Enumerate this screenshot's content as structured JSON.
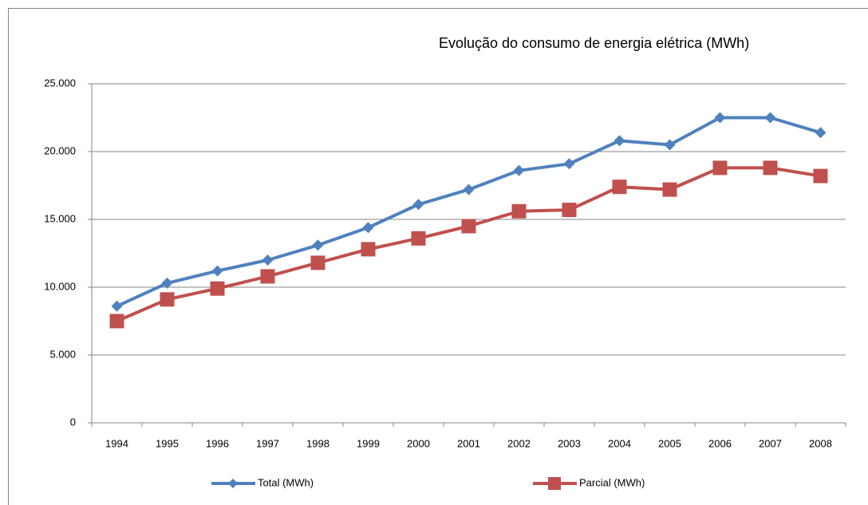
{
  "chart_data": {
    "type": "line",
    "title": "Evolução do consumo de energia elétrica (MWh)",
    "categories": [
      "1994",
      "1995",
      "1996",
      "1997",
      "1998",
      "1999",
      "2000",
      "2001",
      "2002",
      "2003",
      "2004",
      "2005",
      "2006",
      "2007",
      "2008"
    ],
    "series": [
      {
        "name": "Total (MWh)",
        "color": "#4f81bd",
        "marker": "diamond",
        "values": [
          8600,
          10300,
          11200,
          12000,
          13100,
          14400,
          16100,
          17200,
          18600,
          19100,
          20800,
          20500,
          22500,
          22500,
          21400
        ]
      },
      {
        "name": "Parcial (MWh)",
        "color": "#c0504d",
        "marker": "square",
        "values": [
          7500,
          9100,
          9900,
          10800,
          11800,
          12800,
          13600,
          14500,
          15600,
          15700,
          17400,
          17200,
          18800,
          18800,
          18200
        ]
      }
    ],
    "ylim": [
      0,
      25000
    ],
    "yticks": [
      0,
      {
        "value": 5000,
        "label": "5.000"
      },
      {
        "value": 10000,
        "label": "10.000"
      },
      {
        "value": 15000,
        "label": "15.000"
      },
      {
        "value": 20000,
        "label": "20.000"
      },
      {
        "value": 25000,
        "label": "25.000"
      }
    ],
    "grid": true,
    "legend": "bottom"
  }
}
